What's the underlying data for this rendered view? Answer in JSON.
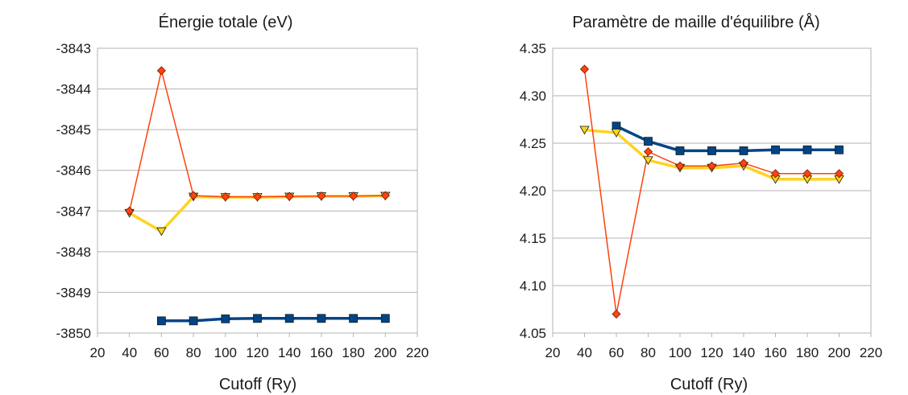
{
  "chart_data": [
    {
      "type": "line",
      "title": "Énergie totale (eV)",
      "xlabel": "Cutoff (Ry)",
      "ylabel": "",
      "xlim": [
        20,
        220
      ],
      "ylim": [
        -3850,
        -3843
      ],
      "xticks": [
        "20",
        "40",
        "60",
        "80",
        "100",
        "120",
        "140",
        "160",
        "180",
        "200",
        "220"
      ],
      "yticks": [
        "-3843",
        "-3844",
        "-3845",
        "-3846",
        "-3847",
        "-3848",
        "-3849",
        "-3850"
      ],
      "grid": true,
      "series": [
        {
          "color": "#004586",
          "marker": "square",
          "x": [
            60,
            80,
            100,
            120,
            140,
            160,
            180,
            200
          ],
          "y": [
            -3849.7,
            -3849.7,
            -3849.65,
            -3849.64,
            -3849.64,
            -3849.64,
            -3849.64,
            -3849.64
          ]
        },
        {
          "color": "#ff420e",
          "marker": "diamond",
          "x": [
            40,
            60,
            80,
            100,
            120,
            140,
            160,
            180,
            200
          ],
          "y": [
            -3847.0,
            -3843.55,
            -3846.62,
            -3846.65,
            -3846.65,
            -3846.64,
            -3846.63,
            -3846.63,
            -3846.62
          ]
        },
        {
          "color": "#ffd320",
          "marker": "triangle-down",
          "x": [
            40,
            60,
            80,
            100,
            120,
            140,
            160,
            180,
            200
          ],
          "y": [
            -3847.05,
            -3847.5,
            -3846.65,
            -3846.66,
            -3846.66,
            -3846.65,
            -3846.64,
            -3846.64,
            -3846.63
          ]
        }
      ]
    },
    {
      "type": "line",
      "title": "Paramètre de maille d'équilibre (Å)",
      "xlabel": "Cutoff (Ry)",
      "ylabel": "",
      "xlim": [
        20,
        220
      ],
      "ylim": [
        4.05,
        4.35
      ],
      "xticks": [
        "20",
        "40",
        "60",
        "80",
        "100",
        "120",
        "140",
        "160",
        "180",
        "200",
        "220"
      ],
      "yticks": [
        "4.35",
        "4.30",
        "4.25",
        "4.20",
        "4.15",
        "4.10",
        "4.05"
      ],
      "grid": true,
      "series": [
        {
          "color": "#004586",
          "marker": "square",
          "x": [
            60,
            80,
            100,
            120,
            140,
            160,
            180,
            200
          ],
          "y": [
            4.268,
            4.252,
            4.242,
            4.242,
            4.242,
            4.243,
            4.243,
            4.243
          ]
        },
        {
          "color": "#ff420e",
          "marker": "diamond",
          "x": [
            40,
            60,
            80,
            100,
            120,
            140,
            160,
            180,
            200
          ],
          "y": [
            4.328,
            4.07,
            4.241,
            4.226,
            4.226,
            4.229,
            4.218,
            4.218,
            4.218
          ]
        },
        {
          "color": "#ffd320",
          "marker": "triangle-down",
          "x": [
            40,
            60,
            80,
            100,
            120,
            140,
            160,
            180,
            200
          ],
          "y": [
            4.264,
            4.261,
            4.232,
            4.224,
            4.224,
            4.226,
            4.212,
            4.212,
            4.212
          ]
        }
      ]
    }
  ]
}
